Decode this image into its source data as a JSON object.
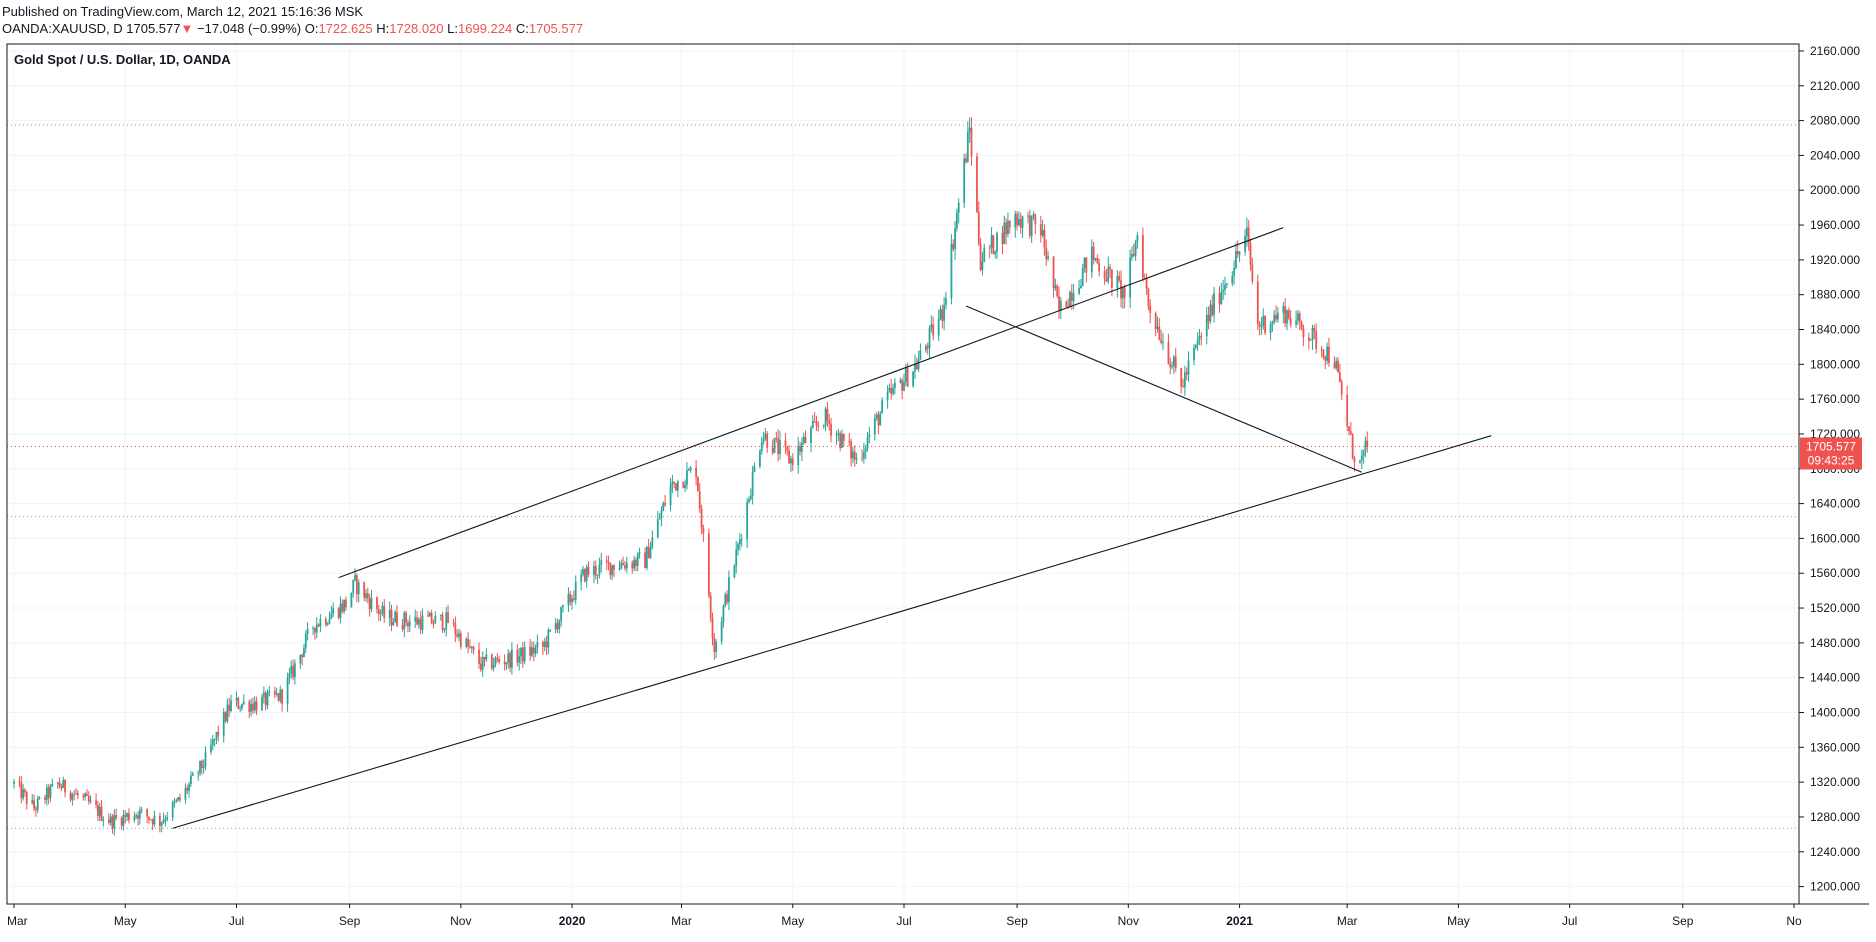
{
  "header": {
    "published": "Published on TradingView.com, March 12, 2021 15:16:36 MSK",
    "symbol": "OANDA:XAUUSD, D",
    "last": "1705.577",
    "change_arrow": "▼",
    "change": "−17.048 (−0.99%)",
    "open_label": "O:",
    "open": "1722.625",
    "high_label": "H:",
    "high": "1728.020",
    "low_label": "L:",
    "low": "1699.224",
    "close_label": "C:",
    "close": "1705.577"
  },
  "colors": {
    "up": "#26a69a",
    "down": "#ef5350",
    "grid": "#f0f3fa",
    "border": "#131722",
    "trendline": "#131722",
    "level_line": "#9598a1",
    "price_line": "#ef5350"
  },
  "icons": {
    "change_arrow": "down-triangle-icon"
  },
  "chart_data": {
    "type": "candlestick",
    "title": "Gold Spot / U.S. Dollar, 1D, OANDA",
    "x_axis": {
      "start": "2019-03-01",
      "end": "2021-11-01",
      "tick_labels": [
        "Mar",
        "May",
        "Jul",
        "Sep",
        "Nov",
        "2020",
        "Mar",
        "May",
        "Jul",
        "Sep",
        "Nov",
        "2021",
        "Mar",
        "May",
        "Jul",
        "Sep",
        "No"
      ],
      "tick_dates": [
        "2019-03-01",
        "2019-05-01",
        "2019-07-01",
        "2019-09-01",
        "2019-11-01",
        "2020-01-01",
        "2020-03-01",
        "2020-05-01",
        "2020-07-01",
        "2020-09-01",
        "2020-11-01",
        "2021-01-01",
        "2021-03-01",
        "2021-05-01",
        "2021-07-01",
        "2021-09-01",
        "2021-11-01"
      ],
      "bold_labels": [
        "2020",
        "2021"
      ]
    },
    "y_axis": {
      "range": [
        1180,
        2168
      ],
      "tick_labels": [
        "1200.000",
        "1240.000",
        "1280.000",
        "1320.000",
        "1360.000",
        "1400.000",
        "1440.000",
        "1480.000",
        "1520.000",
        "1560.000",
        "1600.000",
        "1640.000",
        "1680.000",
        "1720.000",
        "1760.000",
        "1800.000",
        "1840.000",
        "1880.000",
        "1920.000",
        "1960.000",
        "2000.000",
        "2040.000",
        "2080.000",
        "2120.000",
        "2160.000"
      ],
      "side": "right"
    },
    "grid": true,
    "price_path": [
      {
        "date": "2019-03-01",
        "price": 1318
      },
      {
        "date": "2019-03-12",
        "price": 1290
      },
      {
        "date": "2019-03-25",
        "price": 1318
      },
      {
        "date": "2019-04-08",
        "price": 1300
      },
      {
        "date": "2019-04-23",
        "price": 1275
      },
      {
        "date": "2019-05-08",
        "price": 1285
      },
      {
        "date": "2019-05-20",
        "price": 1275
      },
      {
        "date": "2019-05-31",
        "price": 1300
      },
      {
        "date": "2019-06-14",
        "price": 1345
      },
      {
        "date": "2019-06-28",
        "price": 1410
      },
      {
        "date": "2019-07-12",
        "price": 1410
      },
      {
        "date": "2019-07-26",
        "price": 1420
      },
      {
        "date": "2019-08-12",
        "price": 1500
      },
      {
        "date": "2019-08-30",
        "price": 1525
      },
      {
        "date": "2019-09-04",
        "price": 1548
      },
      {
        "date": "2019-09-20",
        "price": 1510
      },
      {
        "date": "2019-10-04",
        "price": 1505
      },
      {
        "date": "2019-10-25",
        "price": 1505
      },
      {
        "date": "2019-11-12",
        "price": 1455
      },
      {
        "date": "2019-11-29",
        "price": 1462
      },
      {
        "date": "2019-12-16",
        "price": 1475
      },
      {
        "date": "2020-01-08",
        "price": 1560
      },
      {
        "date": "2020-01-24",
        "price": 1570
      },
      {
        "date": "2020-02-10",
        "price": 1575
      },
      {
        "date": "2020-02-24",
        "price": 1660
      },
      {
        "date": "2020-03-09",
        "price": 1680
      },
      {
        "date": "2020-03-19",
        "price": 1475
      },
      {
        "date": "2020-04-01",
        "price": 1590
      },
      {
        "date": "2020-04-14",
        "price": 1720
      },
      {
        "date": "2020-04-30",
        "price": 1690
      },
      {
        "date": "2020-05-18",
        "price": 1740
      },
      {
        "date": "2020-06-05",
        "price": 1690
      },
      {
        "date": "2020-06-22",
        "price": 1760
      },
      {
        "date": "2020-07-08",
        "price": 1800
      },
      {
        "date": "2020-07-22",
        "price": 1860
      },
      {
        "date": "2020-08-06",
        "price": 2070
      },
      {
        "date": "2020-08-12",
        "price": 1920
      },
      {
        "date": "2020-08-31",
        "price": 1970
      },
      {
        "date": "2020-09-14",
        "price": 1955
      },
      {
        "date": "2020-09-24",
        "price": 1860
      },
      {
        "date": "2020-10-12",
        "price": 1925
      },
      {
        "date": "2020-10-30",
        "price": 1880
      },
      {
        "date": "2020-11-06",
        "price": 1950
      },
      {
        "date": "2020-11-12",
        "price": 1870
      },
      {
        "date": "2020-11-30",
        "price": 1775
      },
      {
        "date": "2020-12-16",
        "price": 1860
      },
      {
        "date": "2021-01-05",
        "price": 1948
      },
      {
        "date": "2021-01-11",
        "price": 1845
      },
      {
        "date": "2021-01-26",
        "price": 1860
      },
      {
        "date": "2021-02-08",
        "price": 1835
      },
      {
        "date": "2021-02-22",
        "price": 1805
      },
      {
        "date": "2021-03-04",
        "price": 1700
      },
      {
        "date": "2021-03-08",
        "price": 1685
      },
      {
        "date": "2021-03-12",
        "price": 1705.577
      }
    ],
    "trendlines": [
      {
        "from": {
          "date": "2019-05-27",
          "price": 1267
        },
        "to": {
          "date": "2021-05-19",
          "price": 1718
        }
      },
      {
        "from": {
          "date": "2019-08-26",
          "price": 1555
        },
        "to": {
          "date": "2021-01-25",
          "price": 1957
        }
      },
      {
        "from": {
          "date": "2020-08-04",
          "price": 1867
        },
        "to": {
          "date": "2021-03-09",
          "price": 1676
        }
      }
    ],
    "horizontal_levels": [
      2075,
      1625,
      1267
    ],
    "last_price": 1705.577,
    "last_price_label": "1705.577",
    "countdown": "09:43:25"
  }
}
